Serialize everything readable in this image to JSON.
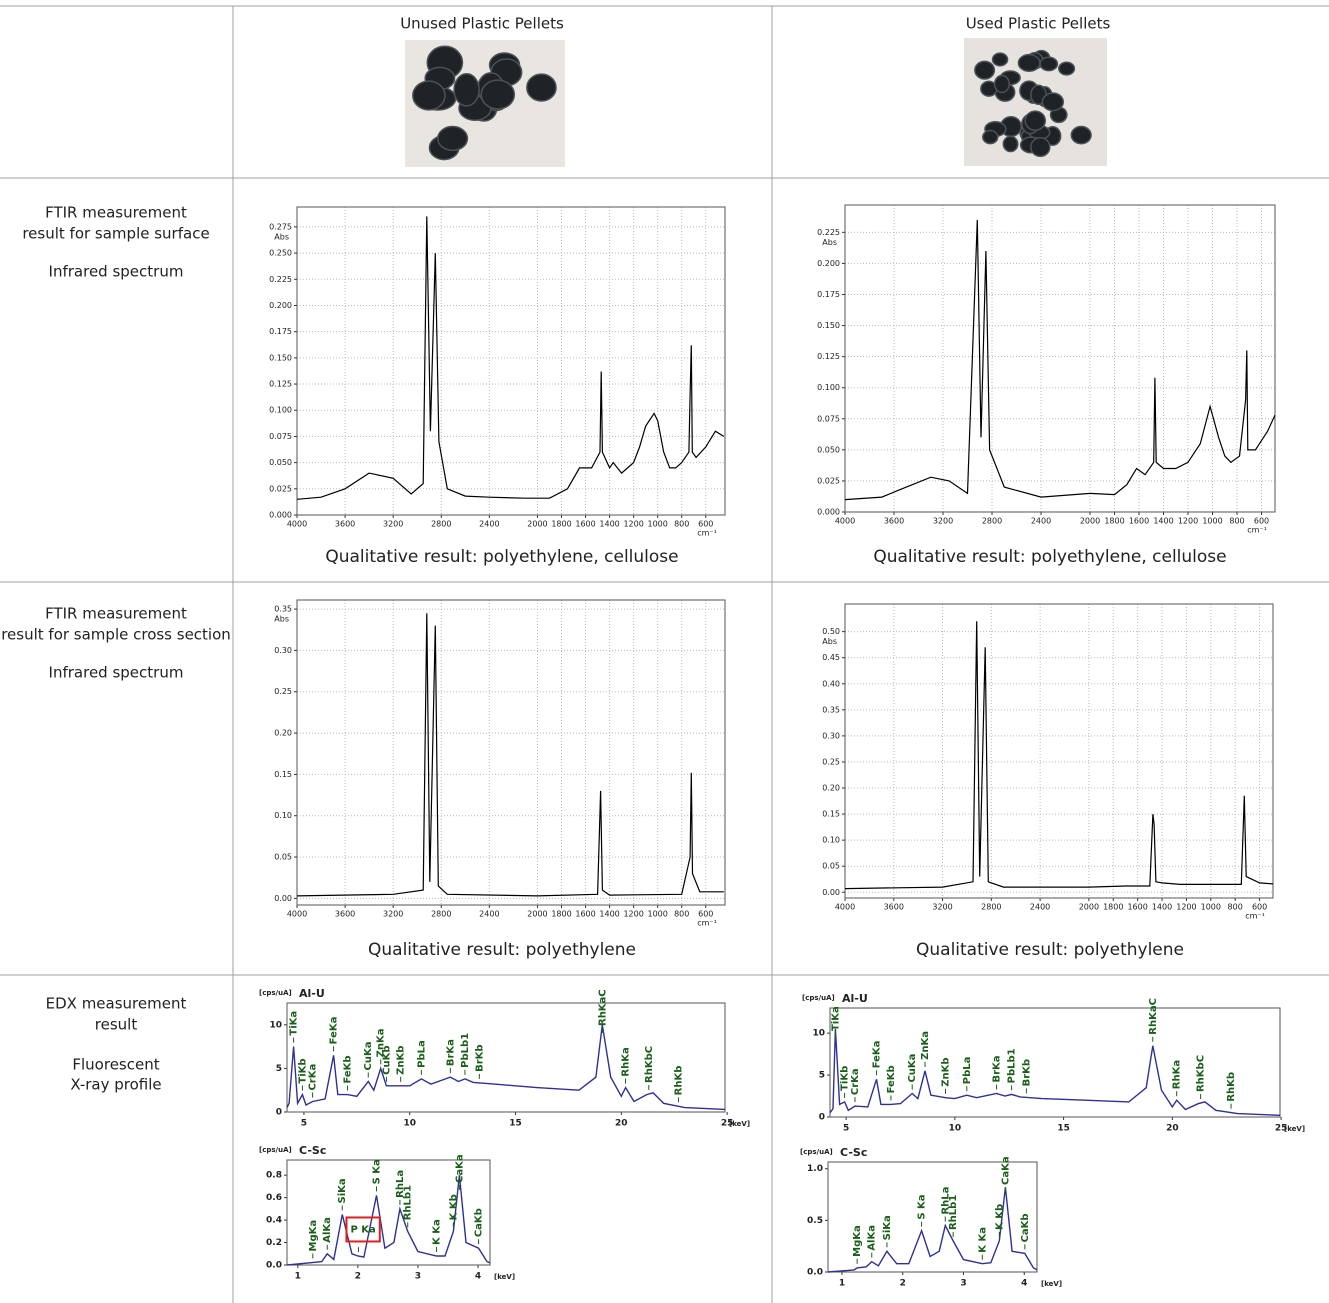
{
  "table": {
    "columns": [
      "Unused Plastic Pellets",
      "Used Plastic Pellets"
    ],
    "rows": [
      {
        "label": [
          "FTIR measurement",
          "result for sample surface",
          "Infrared spectrum"
        ],
        "results": [
          "Qualitative result: polyethylene, cellulose",
          "Qualitative result: polyethylene, cellulose"
        ]
      },
      {
        "label": [
          "FTIR measurement",
          "result for sample cross section",
          "Infrared spectrum"
        ],
        "results": [
          "Qualitative result: polyethylene",
          "Qualitative result: polyethylene"
        ]
      },
      {
        "label": [
          "EDX measurement",
          "result",
          "Fluorescent",
          "X-ray profile"
        ]
      }
    ]
  },
  "chart_data": [
    {
      "type": "ftir",
      "y_label": "Abs",
      "x_label": "cm⁻¹",
      "color": "#000000",
      "grid": true,
      "xlim": [
        4000,
        440
      ],
      "ylim": [
        0,
        0.294
      ],
      "xticks": [
        4000,
        3600,
        3200,
        2800,
        2400,
        2000,
        1800,
        1600,
        1400,
        1200,
        1000,
        800,
        600
      ],
      "yticks": [
        {
          "value": 0,
          "label": "0.000"
        },
        {
          "value": 0.025,
          "label": "0.025"
        },
        {
          "value": 0.05,
          "label": "0.050"
        },
        {
          "value": 0.075,
          "label": "0.075"
        },
        {
          "value": 0.1,
          "label": "0.100"
        },
        {
          "value": 0.125,
          "label": "0.125"
        },
        {
          "value": 0.15,
          "label": "0.150"
        },
        {
          "value": 0.175,
          "label": "0.175"
        },
        {
          "value": 0.2,
          "label": "0.200"
        },
        {
          "value": 0.225,
          "label": "0.225"
        },
        {
          "value": 0.25,
          "label": "0.250"
        },
        {
          "value": 0.275,
          "label": "0.275"
        }
      ],
      "x": [
        4000,
        3800,
        3600,
        3400,
        3200,
        3050,
        2950,
        2920,
        2890,
        2850,
        2820,
        2750,
        2600,
        2400,
        2100,
        1900,
        1750,
        1650,
        1550,
        1480,
        1470,
        1460,
        1400,
        1370,
        1300,
        1200,
        1150,
        1100,
        1030,
        1000,
        950,
        900,
        850,
        800,
        740,
        730,
        720,
        712,
        680,
        600,
        520,
        450
      ],
      "values": [
        0.015,
        0.017,
        0.025,
        0.04,
        0.035,
        0.02,
        0.03,
        0.285,
        0.08,
        0.25,
        0.07,
        0.025,
        0.018,
        0.017,
        0.016,
        0.016,
        0.025,
        0.045,
        0.045,
        0.06,
        0.137,
        0.06,
        0.045,
        0.05,
        0.04,
        0.05,
        0.065,
        0.085,
        0.097,
        0.09,
        0.06,
        0.045,
        0.045,
        0.05,
        0.06,
        0.115,
        0.162,
        0.06,
        0.055,
        0.065,
        0.08,
        0.075
      ]
    },
    {
      "type": "ftir",
      "y_label": "Abs",
      "x_label": "cm⁻¹",
      "color": "#000000",
      "grid": true,
      "xlim": [
        4000,
        490
      ],
      "ylim": [
        0,
        0.247
      ],
      "xticks": [
        4000,
        3600,
        3200,
        2800,
        2400,
        2000,
        1800,
        1600,
        1400,
        1200,
        1000,
        800,
        600
      ],
      "yticks": [
        {
          "value": 0,
          "label": "0.000"
        },
        {
          "value": 0.025,
          "label": "0.025"
        },
        {
          "value": 0.05,
          "label": "0.050"
        },
        {
          "value": 0.075,
          "label": "0.075"
        },
        {
          "value": 0.1,
          "label": "0.100"
        },
        {
          "value": 0.125,
          "label": "0.125"
        },
        {
          "value": 0.15,
          "label": "0.150"
        },
        {
          "value": 0.175,
          "label": "0.175"
        },
        {
          "value": 0.2,
          "label": "0.200"
        },
        {
          "value": 0.225,
          "label": "0.225"
        }
      ],
      "x": [
        4000,
        3700,
        3500,
        3300,
        3150,
        3000,
        2920,
        2890,
        2850,
        2820,
        2700,
        2400,
        2000,
        1800,
        1700,
        1620,
        1550,
        1480,
        1470,
        1460,
        1400,
        1300,
        1200,
        1100,
        1020,
        950,
        900,
        850,
        780,
        730,
        720,
        712,
        650,
        550,
        490
      ],
      "values": [
        0.01,
        0.012,
        0.02,
        0.028,
        0.025,
        0.015,
        0.235,
        0.06,
        0.21,
        0.05,
        0.02,
        0.012,
        0.015,
        0.014,
        0.022,
        0.035,
        0.03,
        0.04,
        0.108,
        0.04,
        0.035,
        0.035,
        0.04,
        0.055,
        0.085,
        0.06,
        0.045,
        0.04,
        0.045,
        0.09,
        0.13,
        0.05,
        0.05,
        0.065,
        0.078
      ]
    },
    {
      "type": "ftir",
      "y_label": "Abs",
      "x_label": "cm⁻¹",
      "color": "#000000",
      "grid": true,
      "xlim": [
        4000,
        440
      ],
      "ylim": [
        -0.008,
        0.361
      ],
      "xticks": [
        4000,
        3600,
        3200,
        2800,
        2400,
        2000,
        1800,
        1600,
        1400,
        1200,
        1000,
        800,
        600
      ],
      "yticks": [
        {
          "value": 0,
          "label": "0.00"
        },
        0.05,
        {
          "value": 0.1,
          "label": "0.10"
        },
        0.15,
        {
          "value": 0.2,
          "label": "0.20"
        },
        0.25,
        {
          "value": 0.3,
          "label": "0.30"
        },
        0.35
      ],
      "x": [
        4000,
        3200,
        2950,
        2920,
        2895,
        2850,
        2825,
        2750,
        2000,
        1500,
        1475,
        1460,
        1400,
        800,
        730,
        720,
        710,
        650,
        450
      ],
      "values": [
        0.003,
        0.005,
        0.01,
        0.345,
        0.02,
        0.33,
        0.015,
        0.005,
        0.003,
        0.005,
        0.13,
        0.01,
        0.004,
        0.005,
        0.05,
        0.152,
        0.03,
        0.008,
        0.008
      ]
    },
    {
      "type": "ftir",
      "y_label": "Abs",
      "x_label": "cm⁻¹",
      "color": "#000000",
      "grid": true,
      "xlim": [
        4000,
        490
      ],
      "ylim": [
        -0.011,
        0.553
      ],
      "xticks": [
        4000,
        3600,
        3200,
        2800,
        2400,
        2000,
        1800,
        1600,
        1400,
        1200,
        1000,
        800,
        600
      ],
      "yticks": [
        {
          "value": 0,
          "label": "0.00"
        },
        0.05,
        {
          "value": 0.1,
          "label": "0.10"
        },
        0.15,
        {
          "value": 0.2,
          "label": "0.20"
        },
        0.25,
        {
          "value": 0.3,
          "label": "0.30"
        },
        0.35,
        {
          "value": 0.4,
          "label": "0.40"
        },
        0.45,
        {
          "value": 0.5,
          "label": "0.50"
        }
      ],
      "x": [
        4000,
        3200,
        2950,
        2920,
        2895,
        2850,
        2825,
        2700,
        2000,
        1700,
        1500,
        1475,
        1465,
        1450,
        1400,
        1250,
        1000,
        750,
        725,
        710,
        600,
        490
      ],
      "values": [
        0.007,
        0.01,
        0.02,
        0.52,
        0.03,
        0.47,
        0.02,
        0.01,
        0.01,
        0.012,
        0.012,
        0.15,
        0.13,
        0.02,
        0.018,
        0.015,
        0.015,
        0.015,
        0.185,
        0.03,
        0.018,
        0.016
      ]
    },
    {
      "type": "edx",
      "title": "Al-U",
      "y_label": "[cps/uA]",
      "x_label": "[keV]",
      "color": "#2e3192",
      "xlim": [
        4.2,
        24.9
      ],
      "ylim": [
        0,
        12.5
      ],
      "xticks": [
        5,
        10,
        15,
        20,
        25
      ],
      "yticks": [
        0,
        5,
        10
      ],
      "x": [
        4.2,
        4.3,
        4.51,
        4.7,
        4.93,
        5.1,
        5.41,
        6,
        6.4,
        6.6,
        7.06,
        7.5,
        8.04,
        8.3,
        8.63,
        8.9,
        9.57,
        10,
        10.55,
        11,
        11.92,
        12.3,
        12.61,
        13,
        14,
        16,
        18,
        18.8,
        19.1,
        19.5,
        20,
        20.2,
        20.6,
        21.2,
        21.5,
        22,
        23,
        24.9
      ],
      "values": [
        0.5,
        1,
        7.5,
        1,
        2,
        0.8,
        1.2,
        1.5,
        6.5,
        2,
        2,
        1.8,
        3.5,
        2.5,
        5,
        3,
        3,
        3,
        3.8,
        3.2,
        4,
        3.5,
        3.8,
        3.4,
        3.2,
        2.8,
        2.5,
        4,
        10,
        4,
        1.8,
        2.8,
        1.2,
        2,
        2.2,
        1,
        0.5,
        0.3
      ],
      "peaks": [
        {
          "label": "TiKa",
          "x": 4.51
        },
        {
          "label": "TiKb",
          "x": 4.93
        },
        {
          "label": "CrKa",
          "x": 5.41
        },
        {
          "label": "FeKa",
          "x": 6.4
        },
        {
          "label": "FeKb",
          "x": 7.06
        },
        {
          "label": "CuKa",
          "x": 8.04
        },
        {
          "label": "ZnKa",
          "x": 8.63
        },
        {
          "label": "CuKb",
          "x": 8.9
        },
        {
          "label": "ZnKb",
          "x": 9.57
        },
        {
          "label": "PbLa",
          "x": 10.55
        },
        {
          "label": "BrKa",
          "x": 11.92
        },
        {
          "label": "PbLb1",
          "x": 12.61
        },
        {
          "label": "BrKb",
          "x": 13.29
        },
        {
          "label": "RhKaC",
          "x": 19.1
        },
        {
          "label": "RhKa",
          "x": 20.2
        },
        {
          "label": "RhKbC",
          "x": 21.3
        },
        {
          "label": "RhKb",
          "x": 22.7
        }
      ]
    },
    {
      "type": "edx",
      "title": "C-Sc",
      "y_label": "[cps/uA]",
      "x_label": "[keV]",
      "color": "#2e3192",
      "xlim": [
        0.82,
        4.2
      ],
      "ylim": [
        0,
        0.935
      ],
      "xticks": [
        1,
        2,
        3,
        4
      ],
      "yticks": [
        {
          "value": 0,
          "label": "0.0"
        },
        0.2,
        0.4,
        0.6,
        0.8
      ],
      "x": [
        0.82,
        1.2,
        1.4,
        1.49,
        1.6,
        1.74,
        1.9,
        2,
        2.1,
        2.31,
        2.45,
        2.6,
        2.7,
        2.83,
        3,
        3.31,
        3.45,
        3.59,
        3.69,
        3.8,
        4.01,
        4.15,
        4.2
      ],
      "values": [
        0,
        0.02,
        0.03,
        0.1,
        0.05,
        0.45,
        0.1,
        0.08,
        0.07,
        0.62,
        0.15,
        0.2,
        0.5,
        0.3,
        0.12,
        0.08,
        0.08,
        0.3,
        0.8,
        0.2,
        0.15,
        0.03,
        0.02
      ],
      "peaks": [
        {
          "label": "MgKa",
          "x": 1.25
        },
        {
          "label": "AlKa",
          "x": 1.49
        },
        {
          "label": "SiKa",
          "x": 1.74
        },
        {
          "label": "P Ka",
          "x": 2.01,
          "highlight": true
        },
        {
          "label": "S Ka",
          "x": 2.31
        },
        {
          "label": "RhLa",
          "x": 2.7
        },
        {
          "label": "RhLb1",
          "x": 2.83
        },
        {
          "label": "K Ka",
          "x": 3.31
        },
        {
          "label": "K Kb",
          "x": 3.59
        },
        {
          "label": "CaKa",
          "x": 3.69
        },
        {
          "label": "CaKb",
          "x": 4.01
        }
      ]
    },
    {
      "type": "edx",
      "title": "Al-U",
      "y_label": "[cps/uA]",
      "x_label": "[keV]",
      "color": "#2e3192",
      "xlim": [
        4.26,
        24.95
      ],
      "ylim": [
        0,
        13
      ],
      "xticks": [
        5,
        10,
        15,
        20,
        25
      ],
      "yticks": [
        0,
        5,
        10
      ],
      "x": [
        4.26,
        4.4,
        4.51,
        4.7,
        4.93,
        5.1,
        5.41,
        6,
        6.4,
        6.6,
        7.06,
        7.5,
        8.04,
        8.3,
        8.63,
        8.9,
        9.57,
        10,
        10.55,
        11,
        11.92,
        12.3,
        12.61,
        13,
        14,
        16,
        18,
        18.8,
        19.1,
        19.5,
        20,
        20.2,
        20.6,
        21.2,
        21.5,
        22,
        23,
        24.95
      ],
      "values": [
        0.5,
        1,
        10.5,
        1.5,
        1.8,
        0.8,
        1.3,
        1.2,
        4.5,
        1.5,
        1.5,
        1.6,
        2.8,
        2.2,
        5.5,
        2.6,
        2.3,
        2.2,
        2.6,
        2.3,
        2.8,
        2.5,
        2.7,
        2.4,
        2.2,
        2,
        1.8,
        3.5,
        8.5,
        3.2,
        1.2,
        2,
        0.9,
        1.6,
        1.8,
        0.8,
        0.4,
        0.2
      ],
      "peaks": [
        {
          "label": "TiKa",
          "x": 4.51
        },
        {
          "label": "TiKb",
          "x": 4.93
        },
        {
          "label": "CrKa",
          "x": 5.41
        },
        {
          "label": "FeKa",
          "x": 6.4
        },
        {
          "label": "FeKb",
          "x": 7.06
        },
        {
          "label": "CuKa",
          "x": 8.04
        },
        {
          "label": "ZnKa",
          "x": 8.63
        },
        {
          "label": "ZnKb",
          "x": 9.57
        },
        {
          "label": "PbLa",
          "x": 10.55
        },
        {
          "label": "BrKa",
          "x": 11.92
        },
        {
          "label": "PbLb1",
          "x": 12.61
        },
        {
          "label": "BrKb",
          "x": 13.29
        },
        {
          "label": "RhKaC",
          "x": 19.1
        },
        {
          "label": "RhKa",
          "x": 20.2
        },
        {
          "label": "RhKbC",
          "x": 21.3
        },
        {
          "label": "RhKb",
          "x": 22.7
        }
      ]
    },
    {
      "type": "edx",
      "title": "C-Sc",
      "y_label": "[cps/uA]",
      "x_label": "[keV]",
      "color": "#2e3192",
      "xlim": [
        0.77,
        4.21
      ],
      "ylim": [
        0,
        1.065
      ],
      "xticks": [
        1,
        2,
        3,
        4
      ],
      "yticks": [
        {
          "value": 0,
          "label": "0.0"
        },
        0.5,
        {
          "value": 1,
          "label": "1.0"
        }
      ],
      "x": [
        0.77,
        1.2,
        1.25,
        1.4,
        1.49,
        1.6,
        1.74,
        1.9,
        2.1,
        2.31,
        2.45,
        2.6,
        2.7,
        2.83,
        3,
        3.31,
        3.45,
        3.59,
        3.69,
        3.8,
        4.01,
        4.15,
        4.21
      ],
      "values": [
        0,
        0.02,
        0.04,
        0.05,
        0.1,
        0.06,
        0.2,
        0.08,
        0.08,
        0.4,
        0.15,
        0.2,
        0.45,
        0.3,
        0.12,
        0.08,
        0.09,
        0.3,
        0.82,
        0.2,
        0.18,
        0.04,
        0.02
      ],
      "peaks": [
        {
          "label": "MgKa",
          "x": 1.25
        },
        {
          "label": "AlKa",
          "x": 1.49
        },
        {
          "label": "SiKa",
          "x": 1.74
        },
        {
          "label": "S Ka",
          "x": 2.31
        },
        {
          "label": "RhLa",
          "x": 2.7
        },
        {
          "label": "RhLb1",
          "x": 2.83
        },
        {
          "label": "K Ka",
          "x": 3.31
        },
        {
          "label": "K Kb",
          "x": 3.59
        },
        {
          "label": "CaKa",
          "x": 3.69
        },
        {
          "label": "CaKb",
          "x": 4.01
        }
      ]
    }
  ]
}
